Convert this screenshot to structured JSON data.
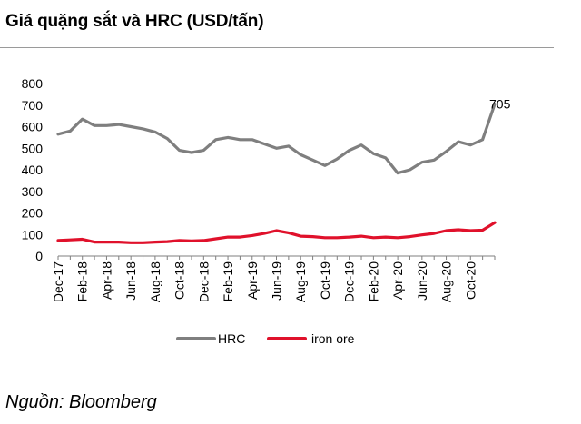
{
  "header": {
    "title": "Giá quặng sắt và HRC (USD/tấn)"
  },
  "footer": {
    "source": "Nguồn: Bloomberg"
  },
  "colors": {
    "hrc": "#7f7f7f",
    "iron_ore": "#e0112b"
  },
  "chart_data": {
    "type": "line",
    "title": "Giá quặng sắt và HRC (USD/tấn)",
    "xlabel": "",
    "ylabel": "",
    "ylim": [
      0,
      800
    ],
    "yticks": [
      0,
      100,
      200,
      300,
      400,
      500,
      600,
      700,
      800
    ],
    "xtick_labels": [
      "Dec-17",
      "Feb-18",
      "Apr-18",
      "Jun-18",
      "Aug-18",
      "Oct-18",
      "Dec-18",
      "Feb-19",
      "Apr-19",
      "Jun-19",
      "Aug-19",
      "Oct-19",
      "Dec-19",
      "Feb-20",
      "Apr-20",
      "Jun-20",
      "Aug-20",
      "Oct-20"
    ],
    "grid": false,
    "legend_position": "bottom-center",
    "annotations": [
      {
        "series": "HRC",
        "text": "705"
      }
    ],
    "x": [
      "Dec-17",
      "Jan-18",
      "Feb-18",
      "Mar-18",
      "Apr-18",
      "May-18",
      "Jun-18",
      "Jul-18",
      "Aug-18",
      "Sep-18",
      "Oct-18",
      "Nov-18",
      "Dec-18",
      "Jan-19",
      "Feb-19",
      "Mar-19",
      "Apr-19",
      "May-19",
      "Jun-19",
      "Jul-19",
      "Aug-19",
      "Sep-19",
      "Oct-19",
      "Nov-19",
      "Dec-19",
      "Jan-20",
      "Feb-20",
      "Mar-20",
      "Apr-20",
      "May-20",
      "Jun-20",
      "Jul-20",
      "Aug-20",
      "Sep-20",
      "Oct-20",
      "Nov-20",
      "Dec-20"
    ],
    "series": [
      {
        "name": "HRC",
        "values": [
          565,
          580,
          635,
          605,
          605,
          610,
          600,
          590,
          575,
          545,
          490,
          480,
          490,
          540,
          550,
          540,
          540,
          520,
          500,
          510,
          470,
          445,
          420,
          450,
          490,
          515,
          475,
          455,
          385,
          400,
          435,
          445,
          485,
          530,
          515,
          540,
          705
        ]
      },
      {
        "name": "iron ore",
        "values": [
          72,
          75,
          78,
          65,
          65,
          65,
          62,
          62,
          65,
          67,
          72,
          70,
          72,
          80,
          88,
          88,
          95,
          105,
          118,
          108,
          92,
          90,
          85,
          85,
          88,
          92,
          85,
          88,
          85,
          90,
          98,
          105,
          118,
          122,
          118,
          120,
          155
        ]
      }
    ]
  }
}
